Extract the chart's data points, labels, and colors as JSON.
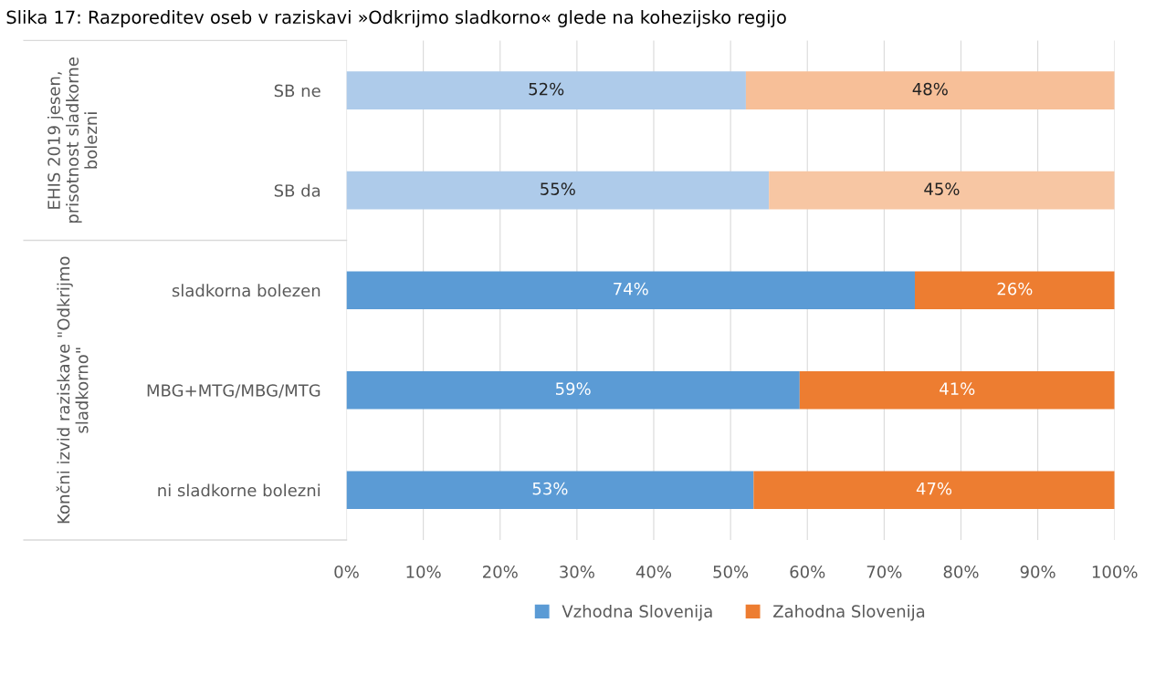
{
  "chart_data": {
    "type": "bar",
    "orientation": "horizontal",
    "stacked": true,
    "title": "Slika 17: Razporeditev oseb v raziskavi »Odkrijmo sladkorno« glede na kohezijsko regijo",
    "categories": [
      "SB ne",
      "SB da",
      "sladkorna bolezen",
      "MBG+MTG/MBG/MTG",
      "ni sladkorne bolezni"
    ],
    "series": [
      {
        "name": "Vzhodna Slovenija",
        "color": "#5b9bd5",
        "colors": [
          "#aecbea",
          "#aecbea",
          "#5b9bd5",
          "#5b9bd5",
          "#5b9bd5"
        ],
        "values": [
          52,
          55,
          74,
          59,
          53
        ],
        "value_labels": [
          "52%",
          "55%",
          "74%",
          "59%",
          "53%"
        ]
      },
      {
        "name": "Zahodna Slovenija",
        "color": "#ed7d31",
        "colors": [
          "#f7bf98",
          "#f7c6a3",
          "#ed7d31",
          "#ed7d31",
          "#ed7d31"
        ],
        "values": [
          48,
          45,
          26,
          41,
          47
        ],
        "value_labels": [
          "48%",
          "45%",
          "26%",
          "41%",
          "47%"
        ]
      }
    ],
    "annotations": [
      "EHIS 2019 jesen,\nprisotnost sladkorne\nbolezni",
      "Končni izvid raziskave \"Odkrijmo\nsladkorno\""
    ],
    "xlim": [
      0,
      100
    ],
    "xticks": [
      {
        "value": 0,
        "label": "0%"
      },
      {
        "value": 10,
        "label": "10%"
      },
      {
        "value": 20,
        "label": "20%"
      },
      {
        "value": 30,
        "label": "30%"
      },
      {
        "value": 40,
        "label": "40%"
      },
      {
        "value": 50,
        "label": "50%"
      },
      {
        "value": 60,
        "label": "60%"
      },
      {
        "value": 70,
        "label": "70%"
      },
      {
        "value": 80,
        "label": "80%"
      },
      {
        "value": 90,
        "label": "90%"
      },
      {
        "value": 100,
        "label": "100%"
      }
    ],
    "grid": "x",
    "legend": "bottom"
  }
}
